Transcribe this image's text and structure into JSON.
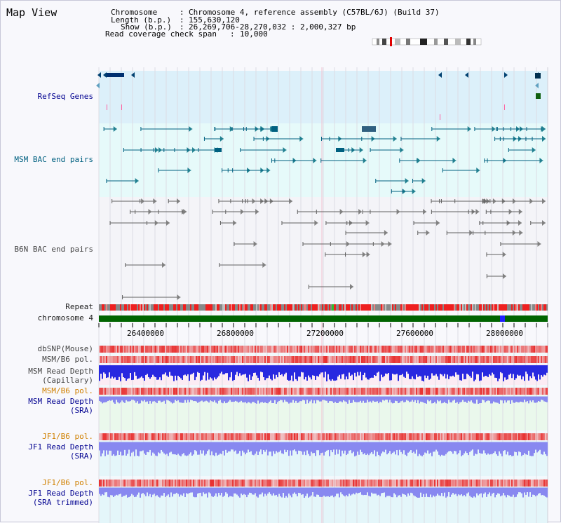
{
  "map_title": "Map View",
  "header": {
    "chromosome_label": "Chromosome",
    "chromosome_value": "Chromosome 4, reference assembly (C57BL/6J) (Build 37)",
    "length_label": "Length (b.p.)",
    "length_value": "155,630,120",
    "show_label": "Show (b.p.)",
    "show_value": "26,269,706-28,270,032 : 2,000,327 bp",
    "span_label": "Read coverage check span",
    "span_value": "10,000"
  },
  "tracks": {
    "refseq": "RefSeq Genes",
    "msm_bac": "MSM BAC end pairs",
    "b6n_bac": "B6N BAC end pairs",
    "repeat": "Repeat",
    "chromosome": "chromosome 4",
    "dbsnp": "dbSNP(Mouse)",
    "msm_b6_pol_1": "MSM/B6 pol.",
    "msm_read_depth_cap_1": "MSM Read Depth",
    "msm_read_depth_cap_2": "(Capillary)",
    "msm_b6_pol_2": "MSM/B6 pol.",
    "msm_read_depth_sra_1": "MSM Read Depth",
    "msm_read_depth_sra_2": "(SRA)",
    "jf1_b6_pol_1": "JF1/B6 pol.",
    "jf1_read_depth_sra_1": "JF1 Read Depth",
    "jf1_read_depth_sra_2": "(SRA)",
    "jf1_b6_pol_2": "JF1/B6 pol.",
    "jf1_read_depth_trim_1": "JF1 Read Depth",
    "jf1_read_depth_trim_2": "(SRA trimmed)"
  },
  "axis": {
    "ticks": [
      "26400000",
      "26800000",
      "27200000",
      "27600000",
      "28000000"
    ]
  },
  "colors": {
    "refseq_bg": "#dcf0fa",
    "msm_bac_bg": "#e6fafa",
    "b6n_bac_bg": "#f4f4f8",
    "chromosome": "#006400",
    "snp_red": "#e83030",
    "depth_blue": "#2828e0",
    "depth_light": "#8888f0"
  }
}
